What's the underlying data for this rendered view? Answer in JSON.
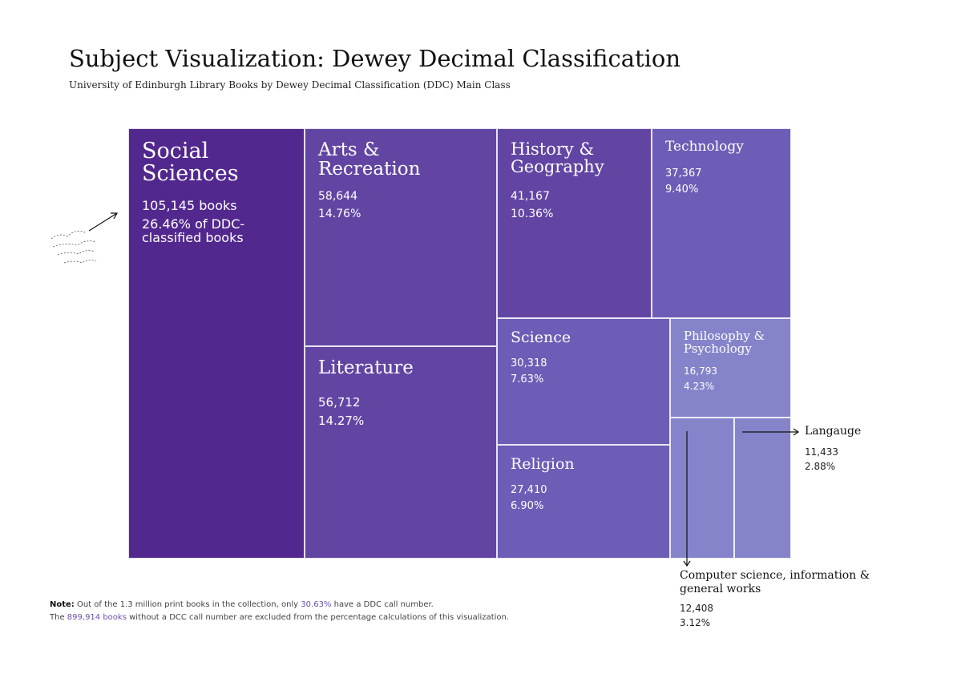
{
  "header": {
    "title": "Subject Visualization: Dewey Decimal Classification",
    "subtitle": "University of Edinburgh Library Books by Dewey Decimal Classification (DDC) Main Class"
  },
  "colors": {
    "darkest": "#52288f",
    "dark": "#6245a3",
    "mid": "#6e5db6",
    "light": "#8584cb"
  },
  "chart_data": {
    "type": "treemap",
    "title": "Subject Visualization: Dewey Decimal Classification",
    "subtitle": "University of Edinburgh Library Books by Dewey Decimal Classification (DDC) Main Class",
    "unit": "books",
    "items": [
      {
        "name": "Social Sciences",
        "value": 105145,
        "value_text": "105,145 books",
        "percent_text": "26.46% of DDC-classified books",
        "percent": 26.46
      },
      {
        "name": "Arts & Recreation",
        "value": 58644,
        "value_text": "58,644",
        "percent_text": "14.76%",
        "percent": 14.76
      },
      {
        "name": "Literature",
        "value": 56712,
        "value_text": "56,712",
        "percent_text": "14.27%",
        "percent": 14.27
      },
      {
        "name": "History & Geography",
        "value": 41167,
        "value_text": "41,167",
        "percent_text": "10.36%",
        "percent": 10.36
      },
      {
        "name": "Technology",
        "value": 37367,
        "value_text": "37,367",
        "percent_text": "9.40%",
        "percent": 9.4
      },
      {
        "name": "Science",
        "value": 30318,
        "value_text": "30,318",
        "percent_text": "7.63%",
        "percent": 7.63
      },
      {
        "name": "Religion",
        "value": 27410,
        "value_text": "27,410",
        "percent_text": "6.90%",
        "percent": 6.9
      },
      {
        "name": "Philosophy & Psychology",
        "value": 16793,
        "value_text": "16,793",
        "percent_text": "4.23%",
        "percent": 4.23
      },
      {
        "name": "Langauge",
        "value": 11433,
        "value_text": "11,433",
        "percent_text": "2.88%",
        "percent": 2.88
      },
      {
        "name": "Computer science, information & general works",
        "value": 12408,
        "value_text": "12,408",
        "percent_text": "3.12%",
        "percent": 3.12
      }
    ],
    "annotations": {
      "note_label": "Note:",
      "note_line1": "Out of the 1.3 million print books in the collection, only",
      "note_highlight1": "30.63%",
      "note_line1_end": "have a DDC call number.",
      "note_line2_start": "The",
      "note_highlight2": "899,914 books",
      "note_line2_end": "without a DCC call number are excluded from the percentage calculations of this visualization."
    }
  }
}
